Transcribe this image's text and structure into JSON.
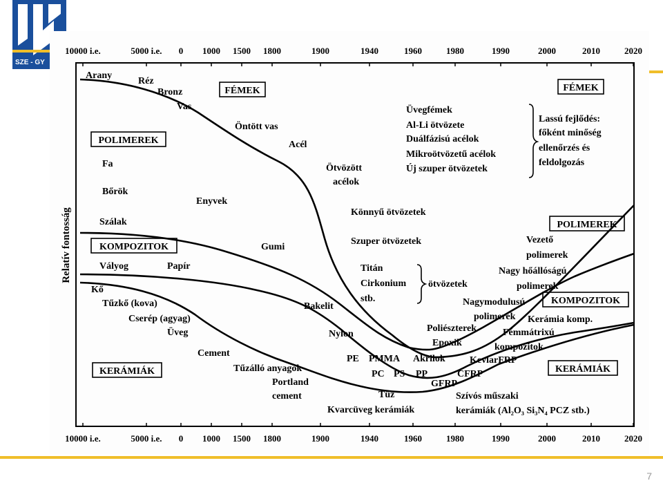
{
  "slide": {
    "page_number": "7",
    "logo_text": "SZE - GY",
    "colors": {
      "accent_rule": "#f0be2a",
      "logo_blue": "#1a4f9c",
      "logo_yellow": "#f0be2a"
    }
  },
  "figure": {
    "y_axis_label": "Relatív fontosság",
    "axis_ticks": [
      "10000 i.e.",
      "5000 i.e.",
      "0",
      "1000",
      "1500",
      "1800",
      "1900",
      "1940",
      "1960",
      "1980",
      "1990",
      "2000",
      "2010",
      "2020"
    ],
    "category_boxes": {
      "femek_left": "FÉMEK",
      "femek_right": "FÉMEK",
      "polimerek_left": "POLIMEREK",
      "polimerek_right": "POLIMEREK",
      "kompozitok_left": "KOMPOZITOK",
      "kompozitok_right": "KOMPOZITOK",
      "keramiak_left": "KERÁMIÁK",
      "keramiak_right": "KERÁMIÁK"
    },
    "labels": {
      "arany": "Arany",
      "rez": "Réz",
      "bronz": "Bronz",
      "vas": "Vas",
      "ontott_vas": "Öntött vas",
      "acel": "Acél",
      "otvozott": "Ötvözött",
      "acelok": "acélok",
      "fa": "Fa",
      "borok": "Bőrök",
      "szalak": "Szálak",
      "enyvek": "Enyvek",
      "gumi": "Gumi",
      "valyog": "Vályog",
      "papir": "Papír",
      "ko": "Kő",
      "tuzko": "Tűzkő (kova)",
      "cserep": "Cserép (agyag)",
      "uveg": "Üveg",
      "cement": "Cement",
      "tuzallo": "Tűzálló anyagok",
      "portland": "Portland",
      "cement2": "cement",
      "bakelit": "Bakelit",
      "nylon": "Nylon",
      "pe": "PE",
      "pmma": "PMMA",
      "akrilok": "Akrilok",
      "pc": "PC",
      "ps": "PS",
      "pp": "PP",
      "tuz": "Tűz",
      "kvarcuveg": "Kvarcüveg kerámiák",
      "uvegfemek": "Üvegfémek",
      "alli": "Al-Li ötvözete",
      "dualfazisu": "Duálfázisú acélok",
      "mikroot": "Mikroötvözetű acélok",
      "ujszuper": "Új szuper ötvözetek",
      "lassu": "Lassú fejlődés:",
      "fokent": "főként minőség",
      "ellenorzes": "ellenőrzés és",
      "feldolgozas": "feldolgozás",
      "konnyu": "Könnyű ötvözetek",
      "szuper": "Szuper ötvözetek",
      "titan": "Titán",
      "cirkonium": "Cirkonium",
      "stb": "stb.",
      "otvozetek": "ötvözetek",
      "vezeto": "Vezető",
      "polimerek_a": "polimerek",
      "nagyho": "Nagy hőállóságú",
      "polimerek_b": "polimerek",
      "nagymodulusu": "Nagymodulusú",
      "polimerek_c": "polimerek",
      "keramia_komp": "Kerámia komp.",
      "poliesz": "Poliészterek",
      "epoxik": "Epoxik",
      "femmatrixu": "Fémmátrixú",
      "kompozitok_lbl": "kompozitok",
      "kevlar": "KevlarFRP",
      "cfrp": "CFRP",
      "gfrp": "GFRP",
      "szivos": "Szívós műszaki",
      "keramiak_formula": "kerámiák (Al₂O₃  Si₃N₄  PCZ  stb.)"
    }
  }
}
